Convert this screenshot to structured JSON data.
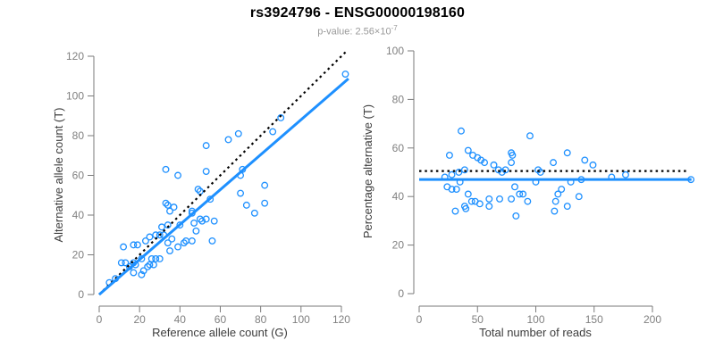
{
  "header": {
    "title": "rs3924796 - ENSG00000198160",
    "subtitle_prefix": "p-value: 2.56×10",
    "subtitle_exponent": "-7"
  },
  "colors": {
    "point_stroke": "#1E90FF",
    "regression_line": "#1E90FF",
    "identity_line": "#000000",
    "axis_line": "#7a7a7a",
    "tick_label": "#808080",
    "axis_title": "#3c3c3c",
    "title": "#000000",
    "subtitle": "#999999",
    "background": "#ffffff"
  },
  "chart_data": [
    {
      "type": "scatter",
      "title": "",
      "xlabel": "Reference allele count (G)",
      "ylabel": "Alternative allele count (T)",
      "xlim": [
        0,
        123
      ],
      "ylim": [
        0,
        123
      ],
      "xticks": [
        0,
        20,
        40,
        60,
        80,
        100,
        120
      ],
      "yticks": [
        0,
        20,
        40,
        60,
        80,
        100,
        120
      ],
      "grid": false,
      "legend": false,
      "marker": "open-circle",
      "points": [
        [
          5,
          6
        ],
        [
          8,
          8
        ],
        [
          11,
          16
        ],
        [
          13,
          16
        ],
        [
          15,
          14
        ],
        [
          17,
          16
        ],
        [
          18,
          15
        ],
        [
          17,
          11
        ],
        [
          21,
          18
        ],
        [
          22,
          12
        ],
        [
          25,
          15
        ],
        [
          27,
          15
        ],
        [
          21,
          10
        ],
        [
          12,
          24
        ],
        [
          17,
          25
        ],
        [
          19,
          25
        ],
        [
          23,
          27
        ],
        [
          25,
          29
        ],
        [
          28,
          30
        ],
        [
          30,
          30
        ],
        [
          32,
          30
        ],
        [
          26,
          18
        ],
        [
          28,
          18
        ],
        [
          30,
          18
        ],
        [
          24,
          14
        ],
        [
          34,
          26
        ],
        [
          36,
          28
        ],
        [
          39,
          24
        ],
        [
          35,
          22
        ],
        [
          42,
          26
        ],
        [
          46,
          27
        ],
        [
          31,
          34
        ],
        [
          34,
          35
        ],
        [
          40,
          35
        ],
        [
          47,
          36
        ],
        [
          35,
          42
        ],
        [
          37,
          44
        ],
        [
          46,
          42
        ],
        [
          33,
          46
        ],
        [
          34,
          45
        ],
        [
          33,
          63
        ],
        [
          39,
          60
        ],
        [
          43,
          27
        ],
        [
          48,
          32
        ],
        [
          50,
          38
        ],
        [
          51,
          37
        ],
        [
          53,
          38
        ],
        [
          57,
          37
        ],
        [
          56,
          27
        ],
        [
          46,
          41
        ],
        [
          49,
          53
        ],
        [
          50,
          52
        ],
        [
          55,
          48
        ],
        [
          53,
          62
        ],
        [
          53,
          75
        ],
        [
          64,
          78
        ],
        [
          69,
          81
        ],
        [
          70,
          60
        ],
        [
          71,
          63
        ],
        [
          70,
          51
        ],
        [
          73,
          45
        ],
        [
          77,
          41
        ],
        [
          82,
          55
        ],
        [
          82,
          46
        ],
        [
          86,
          82
        ],
        [
          90,
          89
        ],
        [
          122,
          111
        ]
      ],
      "lines": [
        {
          "name": "identity-line",
          "style": "dotted",
          "color": "#000000",
          "from": [
            0,
            0
          ],
          "to": [
            123,
            123
          ]
        },
        {
          "name": "regression-line",
          "style": "solid",
          "color": "#1E90FF",
          "from": [
            0,
            0
          ],
          "to": [
            123.5,
            108.7
          ]
        }
      ]
    },
    {
      "type": "scatter",
      "title": "",
      "xlabel": "Total number of reads",
      "ylabel": "Percentage alternative (T)",
      "xlim": [
        0,
        235
      ],
      "ylim": [
        0,
        100
      ],
      "xticks": [
        0,
        50,
        100,
        150,
        200
      ],
      "yticks": [
        0,
        20,
        40,
        60,
        80,
        100
      ],
      "grid": false,
      "legend": false,
      "marker": "open-circle",
      "points": [
        [
          36,
          67
        ],
        [
          95,
          65
        ],
        [
          26,
          57
        ],
        [
          42,
          59
        ],
        [
          46,
          57
        ],
        [
          50,
          56
        ],
        [
          53,
          55
        ],
        [
          56,
          54
        ],
        [
          64,
          53
        ],
        [
          79,
          58
        ],
        [
          80,
          57
        ],
        [
          79,
          54
        ],
        [
          39,
          51
        ],
        [
          34,
          50
        ],
        [
          28,
          49
        ],
        [
          22,
          48
        ],
        [
          68,
          51
        ],
        [
          71,
          50
        ],
        [
          74,
          51
        ],
        [
          102,
          51
        ],
        [
          104,
          50
        ],
        [
          100,
          46
        ],
        [
          24,
          44
        ],
        [
          28,
          43
        ],
        [
          32,
          43
        ],
        [
          35,
          46
        ],
        [
          42,
          41
        ],
        [
          45,
          38
        ],
        [
          48,
          38
        ],
        [
          52,
          37
        ],
        [
          39,
          36
        ],
        [
          40,
          35
        ],
        [
          31,
          34
        ],
        [
          60,
          39
        ],
        [
          69,
          39
        ],
        [
          60,
          36
        ],
        [
          79,
          39
        ],
        [
          82,
          44
        ],
        [
          86,
          41
        ],
        [
          89,
          41
        ],
        [
          93,
          38
        ],
        [
          83,
          32
        ],
        [
          127,
          58
        ],
        [
          115,
          54
        ],
        [
          142,
          55
        ],
        [
          149,
          53
        ],
        [
          130,
          46
        ],
        [
          139,
          47
        ],
        [
          165,
          48
        ],
        [
          177,
          49
        ],
        [
          122,
          43
        ],
        [
          119,
          41
        ],
        [
          137,
          40
        ],
        [
          117,
          38
        ],
        [
          127,
          36
        ],
        [
          116,
          34
        ],
        [
          233,
          47
        ]
      ],
      "lines": [
        {
          "name": "expected-50pct-line",
          "style": "dotted",
          "color": "#000000",
          "from": [
            0,
            50.5
          ],
          "to": [
            231,
            50.5
          ]
        },
        {
          "name": "mean-percentage-line",
          "style": "solid",
          "color": "#1E90FF",
          "from": [
            0,
            47
          ],
          "to": [
            233.5,
            47
          ]
        }
      ]
    }
  ]
}
